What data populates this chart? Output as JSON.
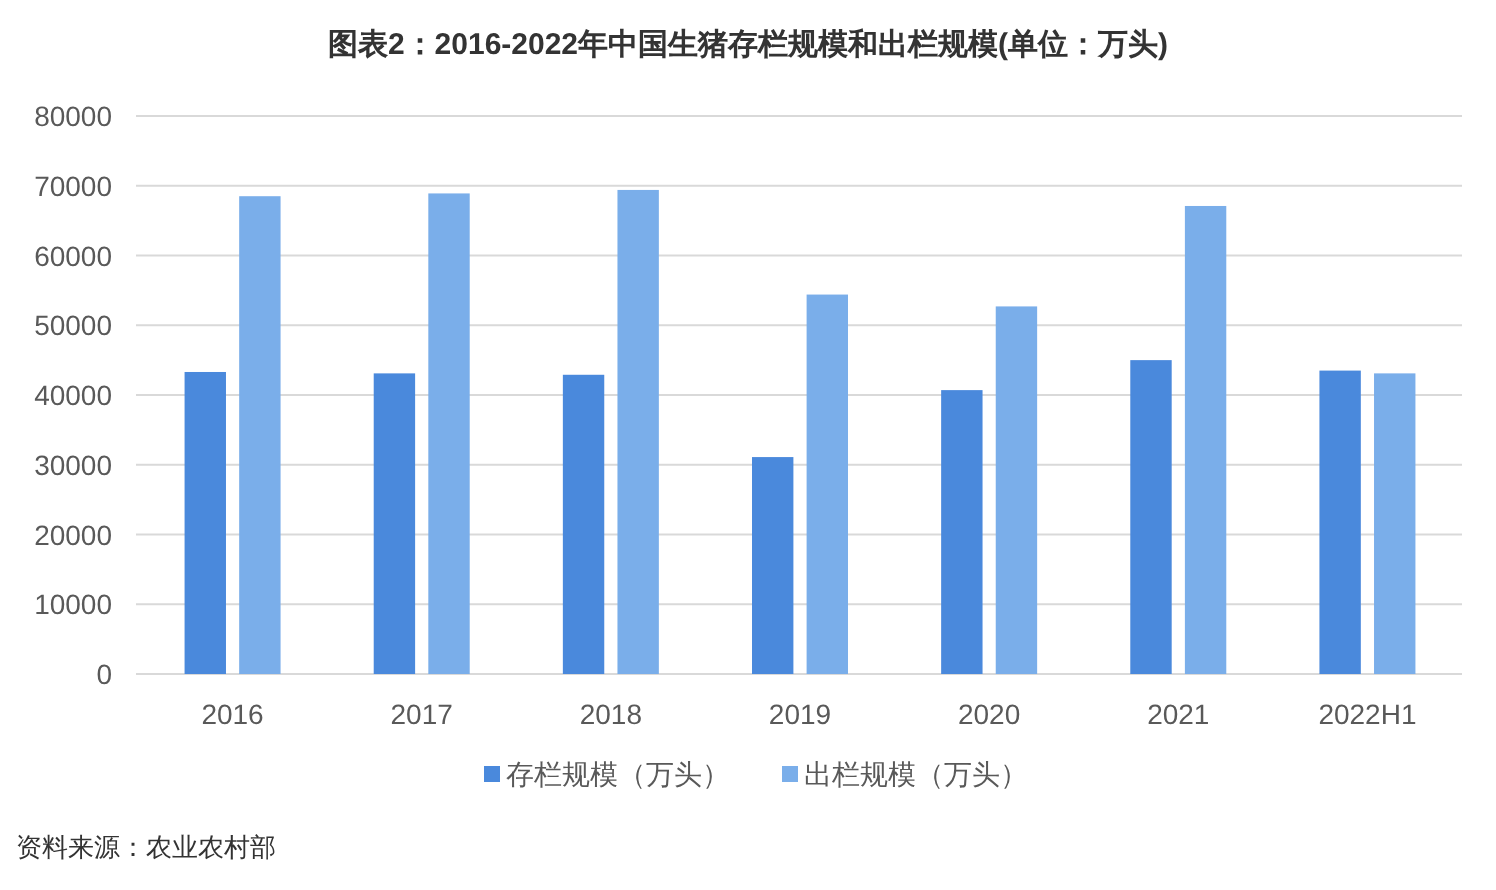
{
  "chart_data": {
    "type": "bar",
    "title": "图表2：2016-2022年中国生猪存栏规模和出栏规模(单位：万头)",
    "categories": [
      "2016",
      "2017",
      "2018",
      "2019",
      "2020",
      "2021",
      "2022H1"
    ],
    "series": [
      {
        "name": "存栏规模（万头）",
        "color": "#4a89dc",
        "values": [
          43300,
          43100,
          42900,
          31100,
          40700,
          45000,
          43500
        ]
      },
      {
        "name": "出栏规模（万头）",
        "color": "#7aaeea",
        "values": [
          68500,
          68900,
          69400,
          54400,
          52700,
          67100,
          43100
        ]
      }
    ],
    "ylim": [
      0,
      80000
    ],
    "yticks": [
      0,
      10000,
      20000,
      30000,
      40000,
      50000,
      60000,
      70000,
      80000
    ],
    "grid": "y",
    "legend": "bottom",
    "annotations": [
      "资料来源：农业农村部"
    ]
  }
}
